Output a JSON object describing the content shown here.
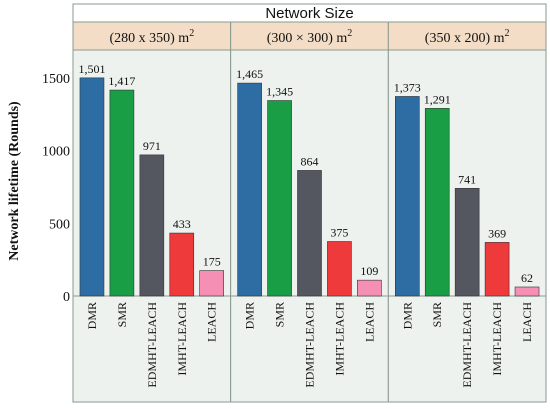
{
  "chart_data": {
    "type": "bar",
    "title": "Network Size",
    "ylabel": "Network lifetime (Rounds)",
    "xlabel": "",
    "ylim": [
      0,
      1600
    ],
    "yticks": [
      0,
      500,
      1000,
      1500
    ],
    "categories": [
      "DMR",
      "SMR",
      "EDMHT-LEACH",
      "IMHT-LEACH",
      "LEACH"
    ],
    "colors": [
      "#2e6da4",
      "#1a9e45",
      "#54575f",
      "#ee3a3a",
      "#f590b4"
    ],
    "panels": [
      {
        "label": "(280 x 350) m",
        "superscript": "2",
        "values": [
          1501,
          1417,
          971,
          433,
          175
        ],
        "value_labels": [
          "1,501",
          "1,417",
          "971",
          "433",
          "175"
        ]
      },
      {
        "label": "(300 × 300) m",
        "superscript": "2",
        "values": [
          1465,
          1345,
          864,
          375,
          109
        ],
        "value_labels": [
          "1,465",
          "1,345",
          "864",
          "375",
          "109"
        ]
      },
      {
        "label": "(350 x 200) m",
        "superscript": "2",
        "values": [
          1373,
          1291,
          741,
          369,
          62
        ],
        "value_labels": [
          "1,373",
          "1,291",
          "741",
          "369",
          "62"
        ]
      }
    ],
    "grid": false,
    "legend": "none"
  },
  "colors": {
    "panel_header_bg": "#f3ddc7",
    "plot_bg": "#eef2ef",
    "border": "#8a9a8f"
  }
}
